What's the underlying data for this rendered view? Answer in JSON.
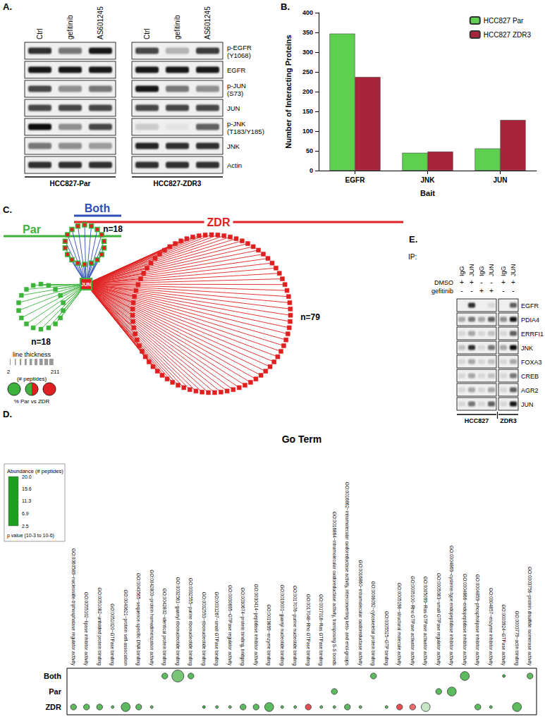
{
  "panel_labels": [
    "A.",
    "B.",
    "C.",
    "D.",
    "E."
  ],
  "blot_A": {
    "groups": [
      {
        "label": "HCC827-Par",
        "lanes": [
          "Ctrl",
          "gefitinib",
          "AS601245"
        ]
      },
      {
        "label": "HCC827-ZDR3",
        "lanes": [
          "Ctrl",
          "gefitinib",
          "AS601245"
        ]
      }
    ],
    "rows": [
      {
        "label": [
          "p-EGFR",
          "(Y1068)"
        ],
        "intensity": [
          0.8,
          0.5,
          0.9,
          0.7,
          0.25,
          0.75
        ]
      },
      {
        "label": [
          "EGFR"
        ],
        "intensity": [
          0.9,
          0.9,
          0.9,
          0.9,
          0.9,
          0.9
        ]
      },
      {
        "label": [
          "p-JUN",
          "(S73)"
        ],
        "intensity": [
          0.7,
          0.4,
          0.5,
          0.9,
          0.5,
          0.4
        ]
      },
      {
        "label": [
          "JUN"
        ],
        "intensity": [
          0.7,
          0.7,
          0.7,
          0.7,
          0.7,
          0.7
        ]
      },
      {
        "label": [
          "p-JNK",
          "(T183/Y185)"
        ],
        "intensity": [
          0.95,
          0.4,
          0.7,
          0.15,
          0.05,
          0.6
        ]
      },
      {
        "label": [
          "JNK"
        ],
        "intensity": [
          0.5,
          0.4,
          0.35,
          0.85,
          0.8,
          0.8
        ]
      },
      {
        "label": [
          "Actin"
        ],
        "intensity": [
          0.8,
          0.8,
          0.8,
          0.8,
          0.8,
          0.8
        ]
      }
    ]
  },
  "chart_data": [
    {
      "type": "bar",
      "categories": [
        "EGFR",
        "JNK",
        "JUN"
      ],
      "series": [
        {
          "name": "HCC827 Par",
          "color": "#5ecf4f",
          "values": [
            347,
            45,
            56
          ]
        },
        {
          "name": "HCC827 ZDR3",
          "color": "#a8243a",
          "values": [
            237,
            48,
            128
          ]
        }
      ],
      "x_label": "Bait",
      "y_label": "Number of Interacting Proteins",
      "ylim": [
        0,
        400
      ],
      "yticks": [
        0,
        50,
        100,
        150,
        200,
        250,
        300,
        350,
        400
      ],
      "grid": false,
      "legend": "top-right"
    },
    {
      "type": "scatter",
      "title": "Go Term",
      "categories": [
        "GO:0060589~nucleoside-triphosphatase regulator activity",
        "GO:0055102~lipase inhibitor activity",
        "GO:0051082~unfolded protein binding",
        "GO:0051020~GTPase binding",
        "GO:0043621~protein self-association",
        "GO:0043565~sequence-specific DNA binding",
        "GO:0042803~protein homodimerization activity",
        "GO:0042802~identical protein binding",
        "GO:0032561~guanyl ribonucleotide binding",
        "GO:0032555~purine ribonucleotide binding",
        "GO:0032553~ribonucleotide binding",
        "GO:0031267~small GTPase binding",
        "GO:0030695~GTPase regulator activity",
        "GO:0030674~protein binding, bridging",
        "GO:0030414~peptidase inhibitor activity",
        "GO:0019899~enzyme binding",
        "GO:0019001~guanyl nucleotide binding",
        "GO:0017076~purine nucleotide binding",
        "GO:0017048~Rho GTPase binding",
        "GO:0017016~Ras GTPase binding",
        "GO:0016864~intramolecular oxidoreductase activity, transposing S-S bonds",
        "GO:0016862~intramolecular oxidoreductase activity, interconverting keto- and enol-groups",
        "GO:0016860~intramolecular oxidoreductase activity",
        "GO:0008092~cytoskeletal protein binding",
        "GO:0005525~GTP binding",
        "GO:0005198~structural molecule activity",
        "GO:0005100~Rho GTPase activator activity",
        "GO:0005099~Ras GTPase activator activity",
        "GO:0005083~small GTPase regulator activity",
        "GO:0004869~cysteine-type endopeptidase inhibitor activity",
        "GO:0004866~endopeptidase inhibitor activity",
        "GO:0004859~phospholipase inhibitor activity",
        "GO:0004857~enzyme inhibitor activity",
        "GO:0003924~GTPase activity",
        "GO:0003779~actin binding",
        "GO:0003756~protein disulfide isomerase activity"
      ],
      "rows": [
        "Both",
        "Par",
        "ZDR"
      ],
      "series": [
        {
          "name": "Both",
          "points": [
            {
              "x": 7,
              "abundance": 5,
              "p_value": 0.0001
            },
            {
              "x": 8,
              "abundance": 6,
              "p_value": 1e-06
            },
            {
              "x": 9,
              "abundance": 5,
              "p_value": 0.0001
            },
            {
              "x": 23,
              "abundance": 5,
              "p_value": 0.0001
            },
            {
              "x": 30,
              "abundance": 5,
              "p_value": 1e-05
            },
            {
              "x": 33,
              "abundance": 4,
              "p_value": 0.001
            },
            {
              "x": 35,
              "abundance": 5,
              "p_value": 0.0001
            }
          ]
        },
        {
          "name": "Par",
          "points": [
            {
              "x": 20,
              "abundance": 5,
              "p_value": 0.0001
            },
            {
              "x": 28,
              "abundance": 5,
              "p_value": 0.0001
            },
            {
              "x": 29,
              "abundance": 5,
              "p_value": 1e-05
            }
          ]
        },
        {
          "name": "ZDR",
          "points": [
            {
              "x": 0,
              "abundance": 5,
              "p_value": 0.0001
            },
            {
              "x": 1,
              "abundance": 5,
              "p_value": 0.0001
            },
            {
              "x": 2,
              "abundance": 5,
              "p_value": 0.0001
            },
            {
              "x": 3,
              "abundance": 5,
              "p_value": 0.001
            },
            {
              "x": 4,
              "abundance": 5,
              "p_value": 1e-05
            },
            {
              "x": 5,
              "abundance": 5,
              "p_value": 0.0001
            },
            {
              "x": 6,
              "abundance": 5,
              "p_value": 0.001
            },
            {
              "x": 10,
              "abundance": 4,
              "p_value": 0.001
            },
            {
              "x": 11,
              "abundance": 5,
              "p_value": 0.001
            },
            {
              "x": 12,
              "abundance": 5,
              "p_value": 0.001
            },
            {
              "x": 13,
              "abundance": 5,
              "p_value": 0.0001
            },
            {
              "x": 14,
              "abundance": 5,
              "p_value": 0.0001
            },
            {
              "x": 15,
              "abundance": 5,
              "p_value": 1e-05
            },
            {
              "x": 16,
              "abundance": 5,
              "p_value": 0.001
            },
            {
              "x": 17,
              "abundance": 5,
              "p_value": 0.001
            },
            {
              "x": 18,
              "abundance": 18,
              "p_value": 0.0001
            },
            {
              "x": 19,
              "abundance": 5,
              "p_value": 0.001
            },
            {
              "x": 20,
              "abundance": 5,
              "p_value": 0.001
            },
            {
              "x": 21,
              "abundance": 5,
              "p_value": 0.0001
            },
            {
              "x": 22,
              "abundance": 5,
              "p_value": 0.001
            },
            {
              "x": 24,
              "abundance": 5,
              "p_value": 0.001
            },
            {
              "x": 25,
              "abundance": 18,
              "p_value": 0.0001
            },
            {
              "x": 26,
              "abundance": 17,
              "p_value": 0.0001
            },
            {
              "x": 27,
              "abundance": 9,
              "p_value": 1e-05
            },
            {
              "x": 31,
              "abundance": 5,
              "p_value": 0.0001
            },
            {
              "x": 32,
              "abundance": 5,
              "p_value": 0.001
            },
            {
              "x": 34,
              "abundance": 5,
              "p_value": 1e-05
            }
          ]
        }
      ],
      "colorbar": {
        "title": "Abundance (# peptides)",
        "range": [
          2.5,
          20
        ],
        "ticks": [
          {
            "value": 20,
            "label": "20.0"
          },
          15.6,
          11.3,
          6.9,
          2.5
        ],
        "colors": [
          "#1e9e1e",
          "#ffffff",
          "#e31a1c"
        ]
      },
      "size_legend": "p value (10-3 to 10-6)",
      "p_range": [
        0.001,
        1e-06
      ]
    }
  ],
  "network": {
    "hub": "JUN",
    "groups": [
      {
        "name": "Par",
        "n": 18,
        "label": "n=18",
        "color": "#3cb43c",
        "colors": [
          "#3cb43c"
        ]
      },
      {
        "name": "Both",
        "n": 18,
        "label": "n=18",
        "color": "#2f4fb8",
        "colors": [
          "#3cb43c",
          "#e02020"
        ]
      },
      {
        "name": "ZDR",
        "n": 79,
        "label": "n=79",
        "color": "#e02020",
        "colors": [
          "#e02020"
        ]
      }
    ],
    "legend": {
      "line_thickness_title": "line thickness",
      "line_thickness_range": [
        2,
        211
      ],
      "line_thickness_unit": "(# peptides)",
      "share_title": "% Par vs ZDR"
    }
  },
  "blot_E": {
    "ip_label": "IP:",
    "lanes": [
      "IgG",
      "JUN",
      "IgG",
      "JUN",
      "IgG",
      "JUN"
    ],
    "treatments": [
      {
        "label": "DMSO",
        "marks": [
          "+",
          "+",
          "-",
          "-",
          "+",
          "+"
        ]
      },
      {
        "label": "gefitinib",
        "marks": [
          "-",
          "-",
          "+",
          "+",
          "-",
          "-"
        ]
      }
    ],
    "groups": [
      {
        "label": "HCC827",
        "span": 4
      },
      {
        "label": "ZDR3",
        "span": 2
      }
    ],
    "rows": [
      {
        "label": "EGFR",
        "intensity": [
          0.0,
          0.8,
          0.0,
          0.1,
          0.0,
          0.6
        ]
      },
      {
        "label": "PDIA4",
        "intensity": [
          0.3,
          0.5,
          0.3,
          0.6,
          0.4,
          0.9
        ]
      },
      {
        "label": "ERRFI1",
        "intensity": [
          0.1,
          0.3,
          0.1,
          0.2,
          0.1,
          0.6
        ]
      },
      {
        "label": "JNK",
        "intensity": [
          0.2,
          0.8,
          0.1,
          0.5,
          0.3,
          0.95
        ]
      },
      {
        "label": "FOXA3",
        "intensity": [
          0.1,
          0.3,
          0.1,
          0.2,
          0.1,
          0.3
        ]
      },
      {
        "label": "CREB",
        "intensity": [
          0.1,
          0.3,
          0.1,
          0.2,
          0.1,
          0.5
        ]
      },
      {
        "label": "AGR2",
        "intensity": [
          0.1,
          0.3,
          0.1,
          0.3,
          0.1,
          0.6
        ]
      },
      {
        "label": "JUN",
        "intensity": [
          0.1,
          0.5,
          0.1,
          0.6,
          0.1,
          0.9
        ]
      }
    ]
  }
}
